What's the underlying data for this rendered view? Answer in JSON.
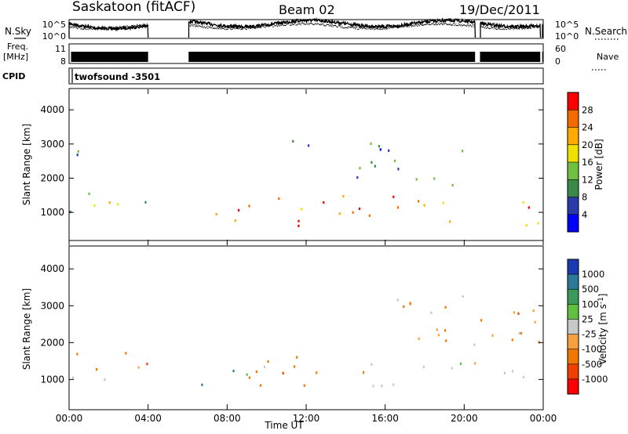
{
  "header": {
    "station": "Saskatoon (fitACF)",
    "beam": "Beam 02",
    "date": "19/Dec/2011"
  },
  "left_labels": {
    "nsky": "N.Sky",
    "freq_line1": "Freq.",
    "freq_line2": "[MHz]",
    "cpid": "CPID"
  },
  "right_labels": {
    "nsearch": "N.Search",
    "nave": "Nave"
  },
  "cpid_value": "twofsound -3501",
  "chart_data": [
    {
      "type": "line",
      "panel": "noise",
      "yticks_left": [
        "10^5",
        "10^0"
      ],
      "yticks_right": [
        "10^5",
        "10^0"
      ],
      "series": [
        {
          "name": "N.Sky",
          "style": "solid"
        },
        {
          "name": "N.Search",
          "style": "dotted"
        }
      ],
      "gaps_hours": [
        [
          4.0,
          6.05
        ],
        [
          20.55,
          20.8
        ],
        [
          23.85,
          23.95
        ]
      ]
    },
    {
      "type": "line",
      "panel": "frequency",
      "yticks_left": [
        "11",
        "8"
      ],
      "yticks_right": [
        "60",
        "0"
      ],
      "gaps_hours": [
        [
          4.0,
          6.05
        ],
        [
          20.55,
          20.8
        ],
        [
          23.85,
          23.95
        ]
      ]
    },
    {
      "type": "heatmap",
      "panel": "power",
      "xlabel": "",
      "ylabel": "Slant Range [km]",
      "xlim_hours": [
        0,
        24
      ],
      "ylim_km": [
        200,
        4600
      ],
      "yticks": [
        1000,
        2000,
        3000,
        4000
      ],
      "colorbar": {
        "label": "Power [dB]",
        "ticks": [
          "28",
          "24",
          "20",
          "16",
          "12",
          "8",
          "4"
        ],
        "colors": [
          "#ff0000",
          "#f46a00",
          "#ffaa00",
          "#f0e000",
          "#70c040",
          "#3a8a4a",
          "#2a3aa8",
          "#0000ff"
        ]
      },
      "regions": [
        {
          "x": [
            0.0,
            4.0
          ],
          "y": [
            900,
            1800
          ],
          "level": 0.55
        },
        {
          "x": [
            6.05,
            9.0
          ],
          "y": [
            600,
            1300
          ],
          "level": 0.8
        },
        {
          "x": [
            9.0,
            15.0
          ],
          "y": [
            600,
            1600
          ],
          "level": 0.75
        },
        {
          "x": [
            15.0,
            20.5
          ],
          "y": [
            700,
            1500
          ],
          "level": 0.7
        },
        {
          "x": [
            20.8,
            24.0
          ],
          "y": [
            600,
            1400
          ],
          "level": 0.7
        },
        {
          "x": [
            14.5,
            20.5
          ],
          "y": [
            1800,
            3200
          ],
          "level": 0.25
        },
        {
          "x": [
            11.0,
            12.5
          ],
          "y": [
            2700,
            3300
          ],
          "level": 0.35
        },
        {
          "x": [
            0.0,
            1.0
          ],
          "y": [
            2000,
            3300
          ],
          "level": 0.25
        }
      ]
    },
    {
      "type": "heatmap",
      "panel": "velocity",
      "xlabel": "Time UT",
      "ylabel": "Slant Range [km]",
      "xlim_hours": [
        0,
        24
      ],
      "ylim_km": [
        200,
        4600
      ],
      "yticks": [
        1000,
        2000,
        3000,
        4000
      ],
      "xticks": [
        "00:00",
        "04:00",
        "08:00",
        "12:00",
        "16:00",
        "20:00",
        "00:00"
      ],
      "colorbar": {
        "label": "Velocity [m s^-1]",
        "ticks": [
          "1000",
          "500",
          "100",
          "25",
          "-25",
          "-100",
          "-500",
          "-1000"
        ],
        "colors": [
          "#1a3ab0",
          "#2a7a9a",
          "#3a9a5a",
          "#60c040",
          "#c8c8c8",
          "#f8a040",
          "#f07800",
          "#f04000",
          "#ff0000"
        ]
      },
      "regions": [
        {
          "x": [
            0.0,
            4.0
          ],
          "y": [
            1100,
            1800
          ],
          "kind": "negative"
        },
        {
          "x": [
            0.0,
            2.0
          ],
          "y": [
            600,
            1200
          ],
          "kind": "neutral"
        },
        {
          "x": [
            6.05,
            9.0
          ],
          "y": [
            700,
            1400
          ],
          "kind": "positive"
        },
        {
          "x": [
            9.0,
            15.0
          ],
          "y": [
            700,
            1800
          ],
          "kind": "negative"
        },
        {
          "x": [
            15.0,
            24.0
          ],
          "y": [
            800,
            1500
          ],
          "kind": "neutral"
        },
        {
          "x": [
            15.5,
            24.0
          ],
          "y": [
            1900,
            3500
          ],
          "kind": "negative"
        }
      ]
    }
  ]
}
